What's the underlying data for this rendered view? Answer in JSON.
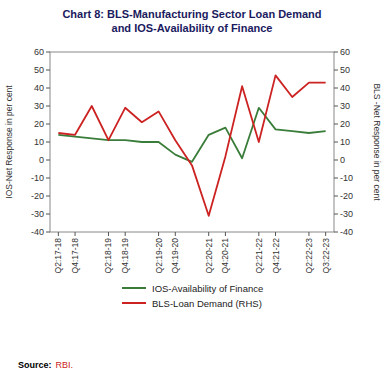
{
  "chart_data": {
    "type": "line",
    "title": "Chart 8: BLS-Manufacturing Sector Loan Demand\nand IOS-Availability of Finance",
    "categories": [
      "Q2:17-18",
      "Q4:17-18",
      null,
      "Q2:18-19",
      "Q4:18-19",
      null,
      "Q2:19-20",
      "Q4:19-20",
      null,
      "Q2:20-21",
      "Q4:20-21",
      null,
      "Q2:21-22",
      "Q4:21-22",
      null,
      "Q2:22-23",
      "Q3:22-23"
    ],
    "series": [
      {
        "name": "IOS-Availability of Finance",
        "color": "#3a7d3a",
        "values": [
          14,
          13,
          12,
          11,
          11,
          10,
          10,
          3,
          -1,
          14,
          18,
          1,
          29,
          17,
          16,
          15,
          16
        ]
      },
      {
        "name": "BLS-Loan Demand (RHS)",
        "color": "#cc2222",
        "axis": "y2",
        "values": [
          15,
          14,
          30,
          11,
          29,
          21,
          27,
          11,
          -3,
          -31,
          2,
          41,
          10,
          47,
          35,
          43,
          43
        ]
      }
    ],
    "ylabel": "IOS-Net Response in per cent",
    "y2label": "BLS -Net Response in per cent",
    "ylim": [
      -40,
      60
    ],
    "yticks": [
      -40,
      -30,
      -20,
      -10,
      0,
      10,
      20,
      30,
      40,
      50,
      60
    ],
    "y2lim": [
      -40,
      60
    ],
    "y2ticks": [
      -40,
      -30,
      -20,
      -10,
      0,
      10,
      20,
      30,
      40,
      50,
      60
    ],
    "grid": false,
    "legend": "bottom",
    "annotations": [
      "Source:",
      "RBI."
    ]
  }
}
